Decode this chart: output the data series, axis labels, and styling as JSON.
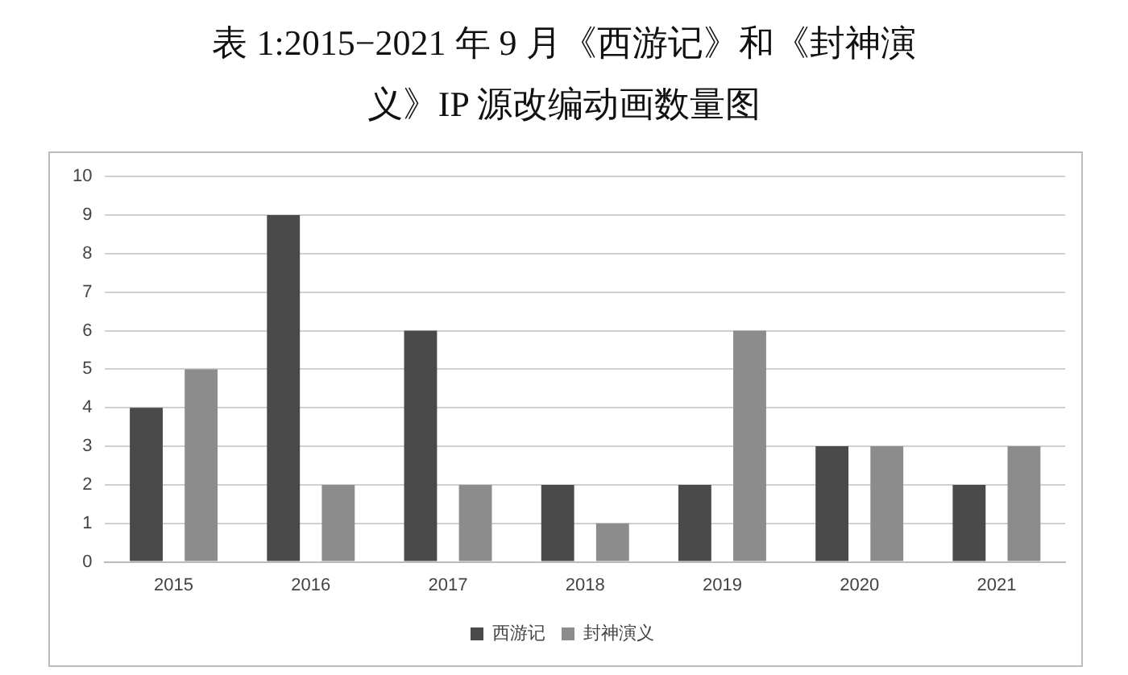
{
  "chart_data": {
    "type": "bar",
    "title": "表 1:2015−2021 年 9 月《西游记》和《封神演义》IP 源改编动画数量图",
    "categories": [
      "2015",
      "2016",
      "2017",
      "2018",
      "2019",
      "2020",
      "2021"
    ],
    "series": [
      {
        "name": "西游记",
        "color": "#4a4a4a",
        "values": [
          4,
          9,
          6,
          2,
          2,
          3,
          2
        ]
      },
      {
        "name": "封神演义",
        "color": "#8c8c8c",
        "values": [
          5,
          2,
          2,
          1,
          6,
          3,
          3
        ]
      }
    ],
    "ylim": [
      0,
      10
    ],
    "yticks": [
      0,
      1,
      2,
      3,
      4,
      5,
      6,
      7,
      8,
      9,
      10
    ],
    "grid": "y",
    "legend": "bottom"
  }
}
